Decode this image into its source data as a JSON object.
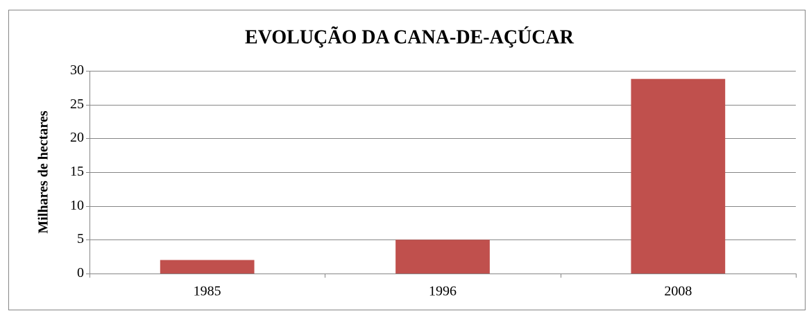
{
  "chart_data": {
    "type": "bar",
    "title": "EVOLUÇÃO DA CANA-DE-AÇÚCAR",
    "y_label": "Milhares de hectares",
    "categories": [
      "1985",
      "1996",
      "2008"
    ],
    "values": [
      2,
      5,
      28.8
    ],
    "color": "#c0504d",
    "ylim": [
      0,
      30
    ],
    "yticks": [
      0,
      5,
      10,
      15,
      20,
      25,
      30
    ],
    "grid": true
  }
}
